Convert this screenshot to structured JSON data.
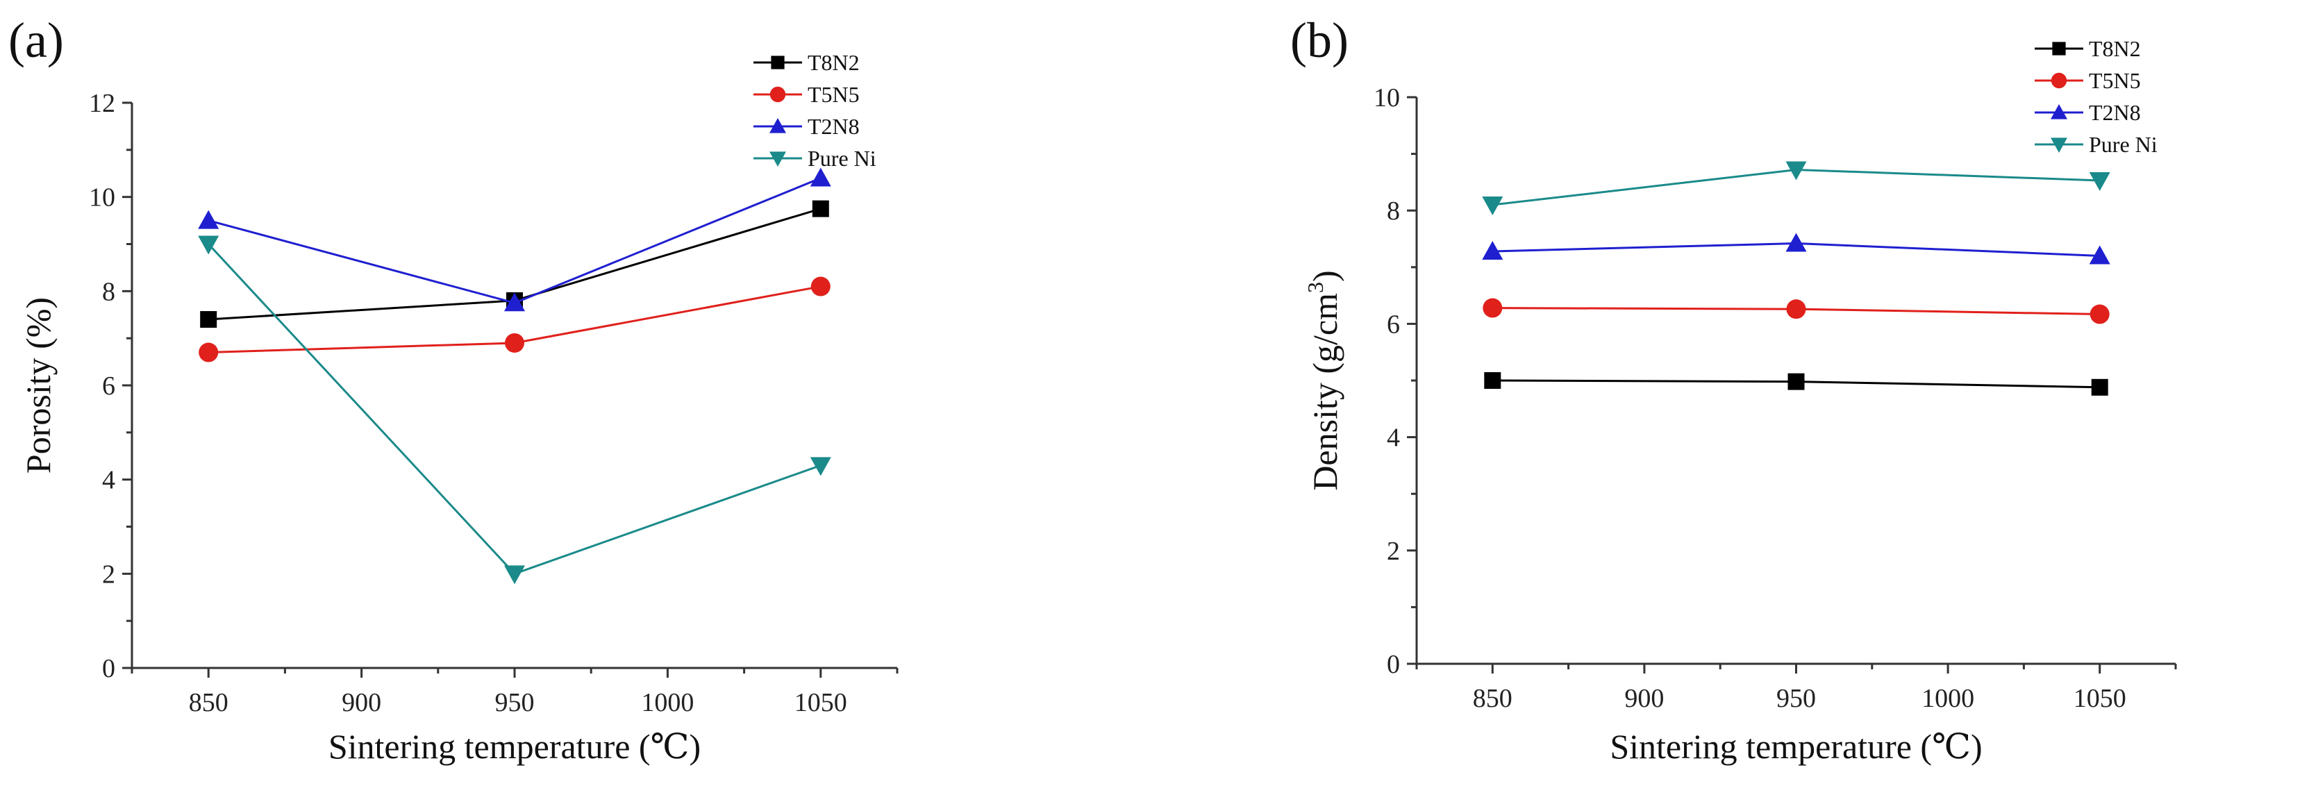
{
  "chart_data": [
    {
      "type": "line",
      "panel_label": "(a)",
      "title": "",
      "xlabel": "Sintering temperature (℃)",
      "ylabel": "Porosity (%)",
      "ylabel_parts": {
        "text": "Porosity (%)",
        "superscript": ""
      },
      "x": [
        850,
        950,
        1050
      ],
      "xticks": [
        850,
        900,
        950,
        1000,
        1050
      ],
      "xlim": [
        825,
        1075
      ],
      "yticks": [
        0,
        2,
        4,
        6,
        8,
        10,
        12
      ],
      "ylim": [
        0,
        12
      ],
      "legend_position": "top-right",
      "series": [
        {
          "name": "T8N2",
          "color": "#000000",
          "marker": "square",
          "values": [
            7.4,
            7.8,
            9.75
          ]
        },
        {
          "name": "T5N5",
          "color": "#e0201b",
          "marker": "circle",
          "values": [
            6.7,
            6.9,
            8.1
          ]
        },
        {
          "name": "T2N8",
          "color": "#1f1fd0",
          "marker": "triangle-up",
          "values": [
            9.5,
            7.75,
            10.4
          ]
        },
        {
          "name": "Pure Ni",
          "color": "#1b8a8a",
          "marker": "triangle-down",
          "values": [
            9.0,
            2.0,
            4.3
          ]
        }
      ]
    },
    {
      "type": "line",
      "panel_label": "(b)",
      "title": "",
      "xlabel": "Sintering temperature (℃)",
      "ylabel": "Density (g/cm3)",
      "ylabel_parts": {
        "text": "Density (g/cm",
        "superscript": "3",
        "suffix": ")"
      },
      "x": [
        850,
        950,
        1050
      ],
      "xticks": [
        850,
        900,
        950,
        1000,
        1050
      ],
      "xlim": [
        825,
        1075
      ],
      "yticks": [
        0,
        2,
        4,
        6,
        8,
        10
      ],
      "ylim": [
        0,
        10
      ],
      "legend_position": "top-right",
      "series": [
        {
          "name": "T8N2",
          "color": "#000000",
          "marker": "square",
          "values": [
            5.0,
            4.98,
            4.88
          ]
        },
        {
          "name": "T5N5",
          "color": "#e0201b",
          "marker": "circle",
          "values": [
            6.28,
            6.26,
            6.17
          ]
        },
        {
          "name": "T2N8",
          "color": "#1f1fd0",
          "marker": "triangle-up",
          "values": [
            7.28,
            7.42,
            7.2
          ]
        },
        {
          "name": "Pure Ni",
          "color": "#1b8a8a",
          "marker": "triangle-down",
          "values": [
            8.1,
            8.72,
            8.53
          ]
        }
      ]
    }
  ]
}
